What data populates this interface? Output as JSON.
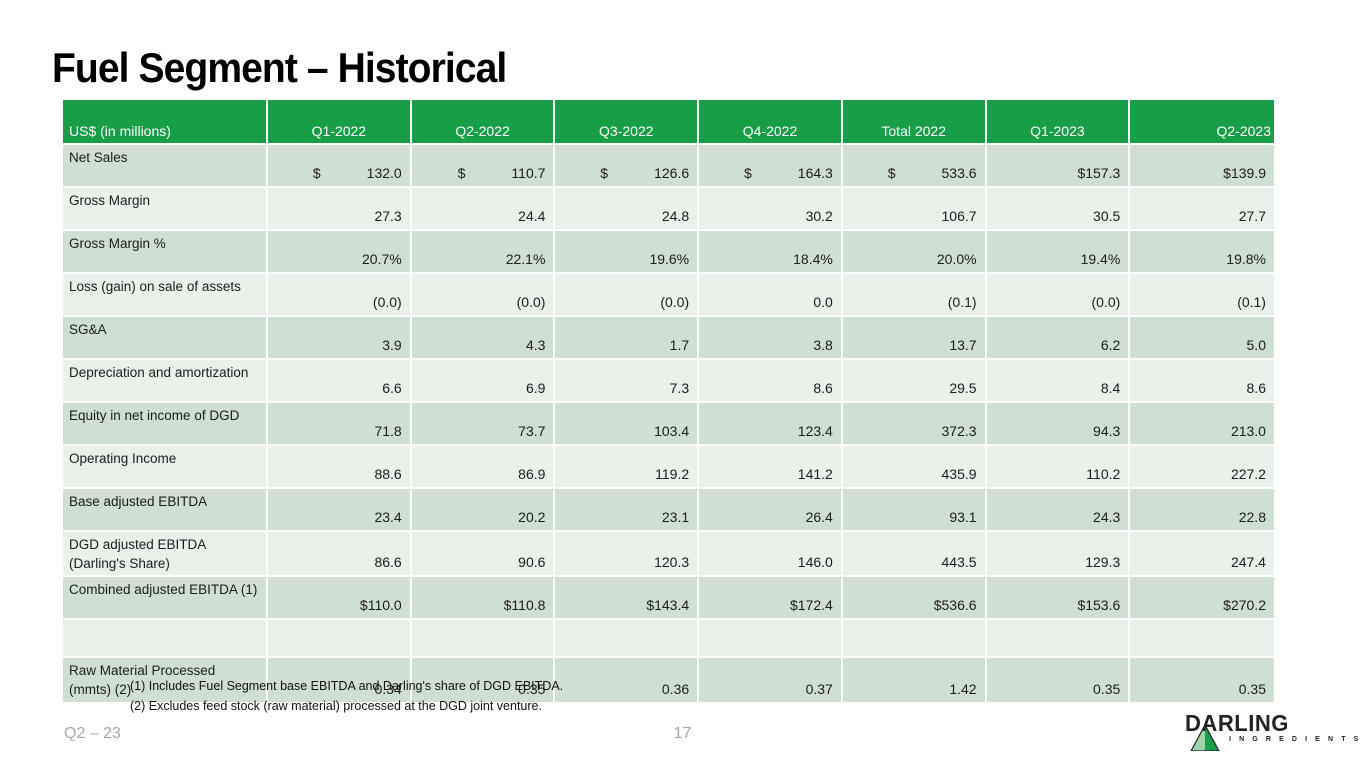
{
  "slide": {
    "title": "Fuel Segment – Historical",
    "footnotes": [
      "(1) Includes Fuel Segment base EBITDA and Darling's share of DGD EBITDA.",
      "(2) Excludes feed stock (raw material) processed at the DGD joint venture."
    ],
    "footer": {
      "left": "Q2 – 23",
      "page": "17"
    },
    "logo": {
      "name": "DARLING",
      "sub": "I N G R E D I E N T S"
    }
  },
  "colors": {
    "header_green": "#189e47",
    "row_dark": "#cedfd3",
    "row_light": "#eaf0ea",
    "footer_gray": "#a6a6a6",
    "logo_dark": "#262223",
    "logo_green_light": "#9ed4a8",
    "logo_green_dark": "#1b9e48"
  },
  "table": {
    "header": [
      "US$ (in millions)",
      "Q1-2022",
      "Q2-2022",
      "Q3-2022",
      "Q4-2022",
      "Total 2022",
      "Q1-2023",
      "Q2-2023"
    ],
    "rows": [
      {
        "label": "Net Sales",
        "cells": [
          {
            "cur": "$",
            "val": "132.0"
          },
          {
            "cur": "$",
            "val": "110.7"
          },
          {
            "cur": "$",
            "val": "126.6"
          },
          {
            "cur": "$",
            "val": "164.3"
          },
          {
            "cur": "$",
            "val": "533.6"
          },
          {
            "val": "$157.3"
          },
          {
            "val": "$139.9"
          }
        ]
      },
      {
        "label": "Gross Margin",
        "cells": [
          {
            "val": "27.3"
          },
          {
            "val": "24.4"
          },
          {
            "val": "24.8"
          },
          {
            "val": "30.2"
          },
          {
            "val": "106.7"
          },
          {
            "val": "30.5"
          },
          {
            "val": "27.7"
          }
        ]
      },
      {
        "label": "Gross Margin %",
        "cells": [
          {
            "val": "20.7%"
          },
          {
            "val": "22.1%"
          },
          {
            "val": "19.6%"
          },
          {
            "val": "18.4%"
          },
          {
            "val": "20.0%"
          },
          {
            "val": "19.4%"
          },
          {
            "val": "19.8%"
          }
        ]
      },
      {
        "label": "Loss (gain) on sale of assets",
        "cells": [
          {
            "val": "(0.0)"
          },
          {
            "val": "(0.0)"
          },
          {
            "val": "(0.0)"
          },
          {
            "val": "0.0"
          },
          {
            "val": "(0.1)"
          },
          {
            "val": "(0.0)"
          },
          {
            "val": "(0.1)"
          }
        ]
      },
      {
        "label": "SG&A",
        "cells": [
          {
            "val": "3.9"
          },
          {
            "val": "4.3"
          },
          {
            "val": "1.7"
          },
          {
            "val": "3.8"
          },
          {
            "val": "13.7"
          },
          {
            "val": "6.2"
          },
          {
            "val": "5.0"
          }
        ]
      },
      {
        "label": "Depreciation and amortization",
        "cells": [
          {
            "val": "6.6"
          },
          {
            "val": "6.9"
          },
          {
            "val": "7.3"
          },
          {
            "val": "8.6"
          },
          {
            "val": "29.5"
          },
          {
            "val": "8.4"
          },
          {
            "val": "8.6"
          }
        ]
      },
      {
        "label": "Equity in net income of DGD",
        "cells": [
          {
            "val": "71.8"
          },
          {
            "val": "73.7"
          },
          {
            "val": "103.4"
          },
          {
            "val": "123.4"
          },
          {
            "val": "372.3"
          },
          {
            "val": "94.3"
          },
          {
            "val": "213.0"
          }
        ]
      },
      {
        "label": "Operating Income",
        "cells": [
          {
            "val": "88.6"
          },
          {
            "val": "86.9"
          },
          {
            "val": "119.2"
          },
          {
            "val": "141.2"
          },
          {
            "val": "435.9"
          },
          {
            "val": "110.2"
          },
          {
            "val": "227.2"
          }
        ]
      },
      {
        "label": "Base adjusted EBITDA",
        "cells": [
          {
            "val": "23.4"
          },
          {
            "val": "20.2"
          },
          {
            "val": "23.1"
          },
          {
            "val": "26.4"
          },
          {
            "val": "93.1"
          },
          {
            "val": "24.3"
          },
          {
            "val": "22.8"
          }
        ]
      },
      {
        "label": "DGD adjusted EBITDA (Darling's Share)",
        "cells": [
          {
            "val": "86.6"
          },
          {
            "val": "90.6"
          },
          {
            "val": "120.3"
          },
          {
            "val": "146.0"
          },
          {
            "val": "443.5"
          },
          {
            "val": "129.3"
          },
          {
            "val": "247.4"
          }
        ]
      },
      {
        "label": "Combined adjusted EBITDA (1)",
        "cells": [
          {
            "val": "$110.0"
          },
          {
            "val": "$110.8"
          },
          {
            "val": "$143.4"
          },
          {
            "val": "$172.4"
          },
          {
            "val": "$536.6"
          },
          {
            "val": "$153.6"
          },
          {
            "val": "$270.2"
          }
        ]
      },
      {
        "label": "",
        "blank": true,
        "cells": [
          {
            "val": ""
          },
          {
            "val": ""
          },
          {
            "val": ""
          },
          {
            "val": ""
          },
          {
            "val": ""
          },
          {
            "val": ""
          },
          {
            "val": ""
          }
        ]
      },
      {
        "label": "Raw Material Processed (mmts) (2)",
        "tall": true,
        "cells": [
          {
            "val": "0.34"
          },
          {
            "val": "0.35"
          },
          {
            "val": "0.36"
          },
          {
            "val": "0.37"
          },
          {
            "val": "1.42"
          },
          {
            "val": "0.35"
          },
          {
            "val": "0.35"
          }
        ]
      }
    ]
  }
}
